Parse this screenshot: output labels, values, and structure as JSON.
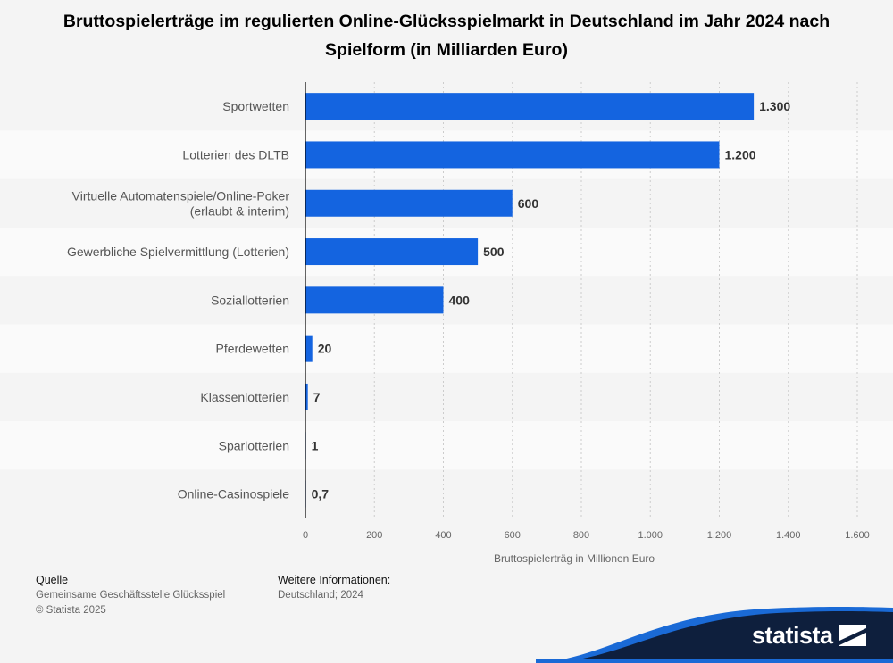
{
  "title": "Bruttospielerträge im regulierten Online-Glücksspielmarkt in Deutschland im Jahr 2024 nach Spielform (in Milliarden Euro)",
  "footer": {
    "source_heading": "Quelle",
    "source_name": "Gemeinsame Geschäftsstelle Glücksspiel",
    "copyright": "© Statista 2025",
    "info_heading": "Weitere Informationen:",
    "info_text": "Deutschland; 2024"
  },
  "brand": {
    "name": "statista"
  },
  "colors": {
    "bar": "#1464e0",
    "band": "#fafafa",
    "grid": "#cccccc",
    "brand_dark": "#0e1f3d",
    "brand_light": "#1a6ad6"
  },
  "chart_data": {
    "type": "bar",
    "orientation": "horizontal",
    "xlabel": "Bruttospielerträg in Millionen Euro",
    "xlim": [
      0,
      1600
    ],
    "grid": true,
    "categories": [
      "Sportwetten",
      "Lotterien des DLTB",
      "Virtuelle Automatenspiele/Online-Poker (erlaubt & interim)",
      "Gewerbliche Spielvermittlung (Lotterien)",
      "Soziallotterien",
      "Pferdewetten",
      "Klassenlotterien",
      "Sparlotterien",
      "Online-Casinospiele"
    ],
    "category_lines": [
      [
        "Sportwetten"
      ],
      [
        "Lotterien des DLTB"
      ],
      [
        "Virtuelle Automatenspiele/Online-Poker",
        "(erlaubt & interim)"
      ],
      [
        "Gewerbliche Spielvermittlung (Lotterien)"
      ],
      [
        "Soziallotterien"
      ],
      [
        "Pferdewetten"
      ],
      [
        "Klassenlotterien"
      ],
      [
        "Sparlotterien"
      ],
      [
        "Online-Casinospiele"
      ]
    ],
    "values": [
      1300,
      1200,
      600,
      500,
      400,
      20,
      7,
      1,
      0.7
    ],
    "value_labels": [
      "1.300",
      "1.200",
      "600",
      "500",
      "400",
      "20",
      "7",
      "1",
      "0,7"
    ],
    "ticks": [
      0,
      200,
      400,
      600,
      800,
      1000,
      1200,
      1400,
      1600
    ],
    "tick_labels": [
      "0",
      "200",
      "400",
      "600",
      "800",
      "1.000",
      "1.200",
      "1.400",
      "1.600"
    ]
  }
}
